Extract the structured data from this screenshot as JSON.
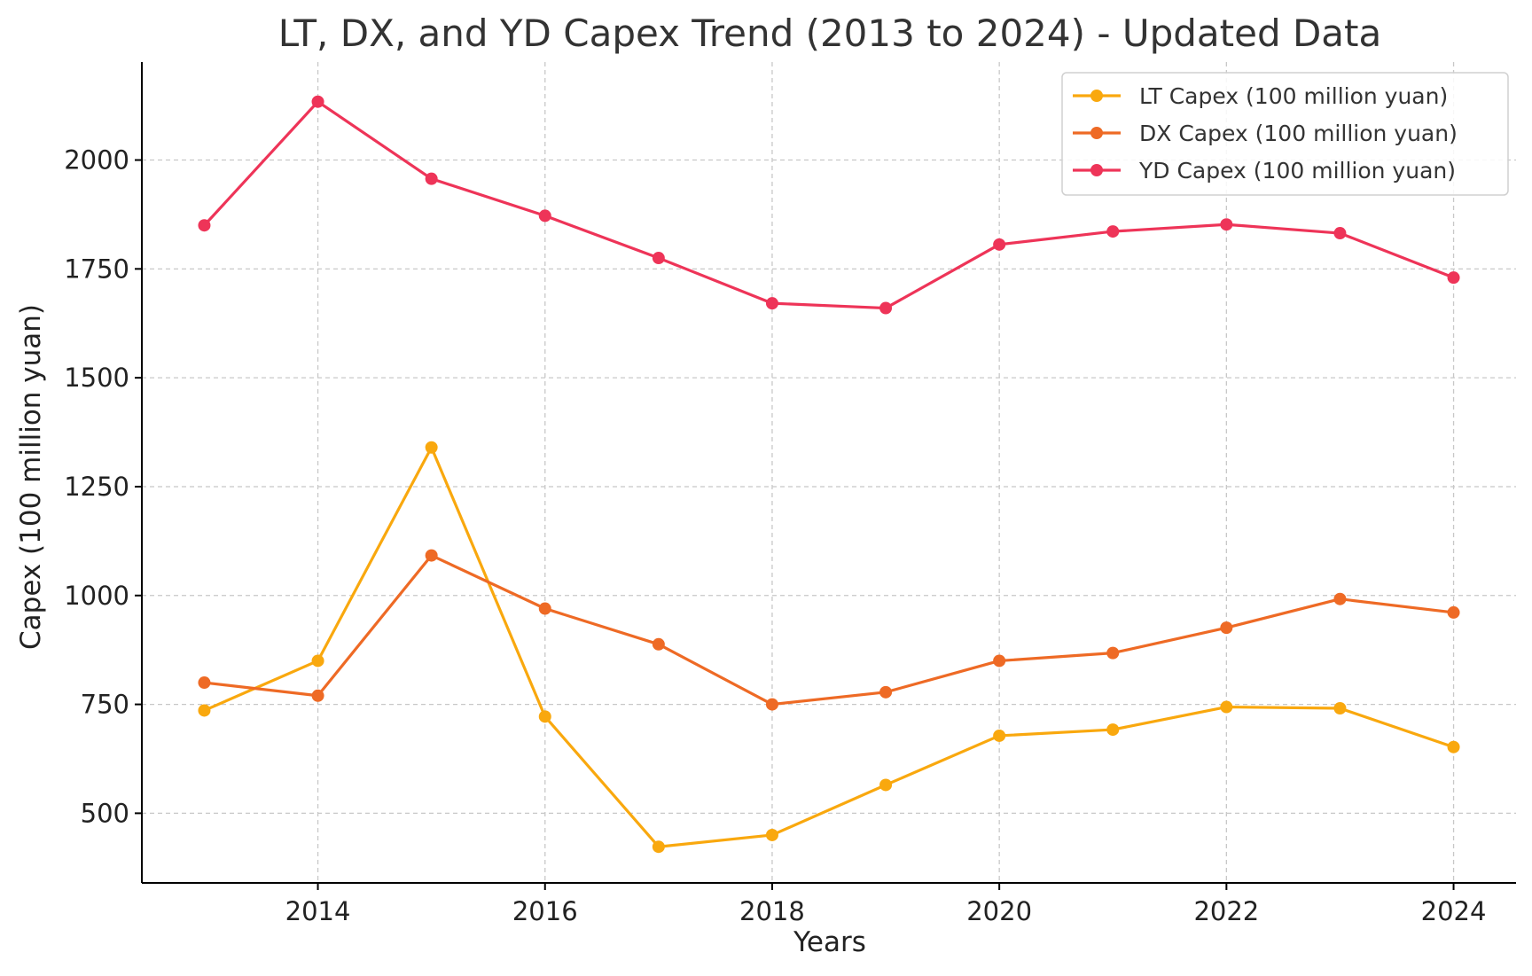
{
  "chart_data": {
    "type": "line",
    "title": "LT, DX, and YD Capex Trend (2013 to 2024) - Updated Data",
    "xlabel": "Years",
    "ylabel": "Capex (100 million yuan)",
    "x": [
      2013,
      2014,
      2015,
      2016,
      2017,
      2018,
      2019,
      2020,
      2021,
      2022,
      2023,
      2024
    ],
    "xlim": [
      2012.45,
      2024.55
    ],
    "ylim": [
      340,
      2225
    ],
    "xticks": [
      2014,
      2016,
      2018,
      2020,
      2022,
      2024
    ],
    "yticks": [
      500,
      750,
      1000,
      1250,
      1500,
      1750,
      2000
    ],
    "grid": true,
    "legend_position": "top-right",
    "series": [
      {
        "name": "LT Capex (100 million yuan)",
        "color": "#F9A80E",
        "values": [
          736,
          850,
          1340,
          722,
          423,
          450,
          565,
          678,
          692,
          744,
          741,
          652
        ]
      },
      {
        "name": "DX Capex (100 million yuan)",
        "color": "#EE6A25",
        "values": [
          800,
          770,
          1092,
          970,
          888,
          750,
          778,
          850,
          868,
          926,
          992,
          961
        ]
      },
      {
        "name": "YD Capex (100 million yuan)",
        "color": "#EE3458",
        "values": [
          1850,
          2134,
          1957,
          1872,
          1775,
          1671,
          1660,
          1806,
          1836,
          1852,
          1832,
          1730
        ]
      }
    ]
  }
}
